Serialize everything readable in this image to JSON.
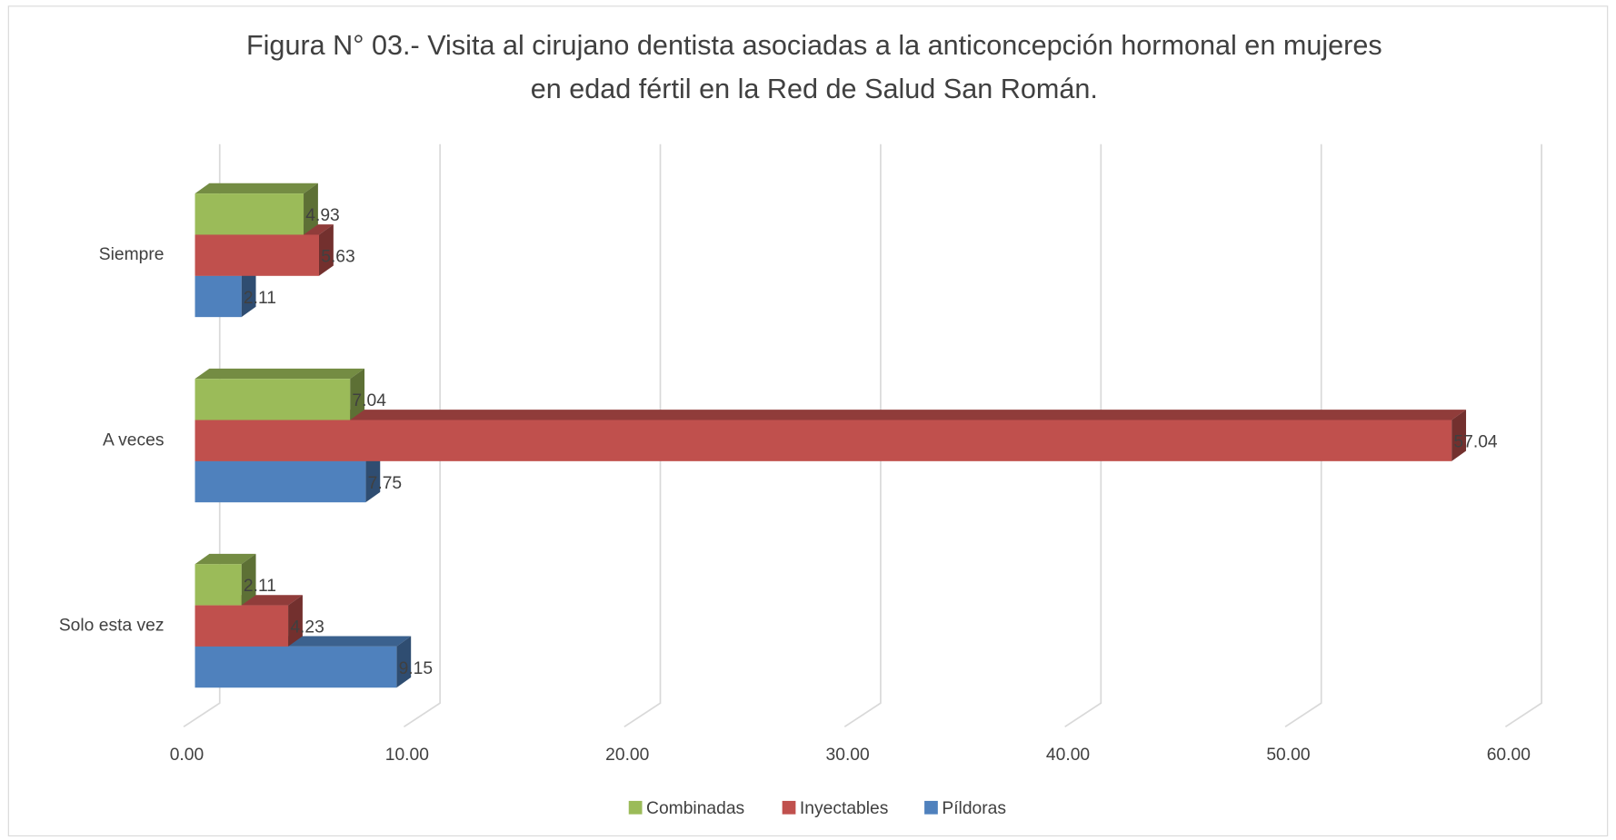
{
  "chart_data": {
    "type": "bar3d",
    "title": [
      "Figura N° 03.- Visita al cirujano dentista asociadas a la anticoncepción hormonal en mujeres",
      "en edad fértil en la Red de Salud San Román."
    ],
    "categories": [
      "Siempre",
      "A veces",
      "Solo esta vez"
    ],
    "series": [
      {
        "name": "Combinadas",
        "color": "#9bbb59",
        "values": [
          4.93,
          7.04,
          2.11
        ]
      },
      {
        "name": "Inyectables",
        "color": "#c0504d",
        "values": [
          5.63,
          57.04,
          4.23
        ]
      },
      {
        "name": "Píldoras",
        "color": "#4f81bd",
        "values": [
          2.11,
          7.75,
          9.15
        ]
      }
    ],
    "xlim": [
      0,
      60
    ],
    "xticks": [
      {
        "value": 0,
        "label": "0.00"
      },
      {
        "value": 10,
        "label": "10.00"
      },
      {
        "value": 20,
        "label": "20.00"
      },
      {
        "value": 30,
        "label": "30.00"
      },
      {
        "value": 40,
        "label": "40.00"
      },
      {
        "value": 50,
        "label": "50.00"
      },
      {
        "value": 60,
        "label": "60.00"
      }
    ],
    "grid": true
  }
}
